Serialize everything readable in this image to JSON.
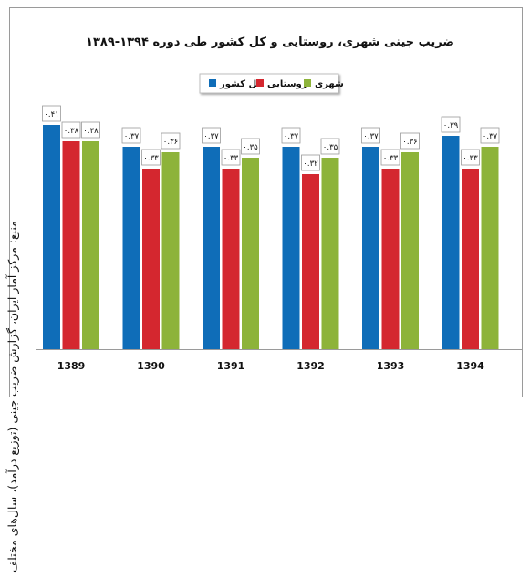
{
  "chart_data": {
    "type": "bar",
    "title": "ضریب جینی شهری، روستایی و کل کشور طی دوره ۱۳۹۴-۱۳۸۹",
    "source": "منبع: مرکز آمار ایران، گزارش ضریب جینی (توزیع درآمد)، سال‌های مختلف",
    "categories": [
      "1389",
      "1390",
      "1391",
      "1392",
      "1393",
      "1394"
    ],
    "series": [
      {
        "name": "کل کشور",
        "color": "#0f6db8",
        "values": [
          0.41,
          0.37,
          0.37,
          0.37,
          0.37,
          0.39
        ],
        "labels": [
          "۰.۴۱",
          "۰.۳۷",
          "۰.۳۷",
          "۰.۳۷",
          "۰.۳۷",
          "۰.۳۹"
        ]
      },
      {
        "name": "روستایی",
        "color": "#d4272f",
        "values": [
          0.38,
          0.33,
          0.33,
          0.32,
          0.33,
          0.33
        ],
        "labels": [
          "۰.۳۸",
          "۰.۳۳",
          "۰.۳۳",
          "۰.۳۲",
          "۰.۳۳",
          "۰.۳۳"
        ]
      },
      {
        "name": "شهری",
        "color": "#8db33a",
        "values": [
          0.38,
          0.36,
          0.35,
          0.35,
          0.36,
          0.37
        ],
        "labels": [
          "۰.۳۸",
          "۰.۳۶",
          "۰.۳۵",
          "۰.۳۵",
          "۰.۳۶",
          "۰.۳۷"
        ]
      }
    ],
    "legend": {
      "items": [
        "کل کشور",
        "روستایی",
        "شهری"
      ],
      "position": "top-center"
    },
    "grid": false,
    "ylim": [
      0,
      0.43
    ]
  }
}
